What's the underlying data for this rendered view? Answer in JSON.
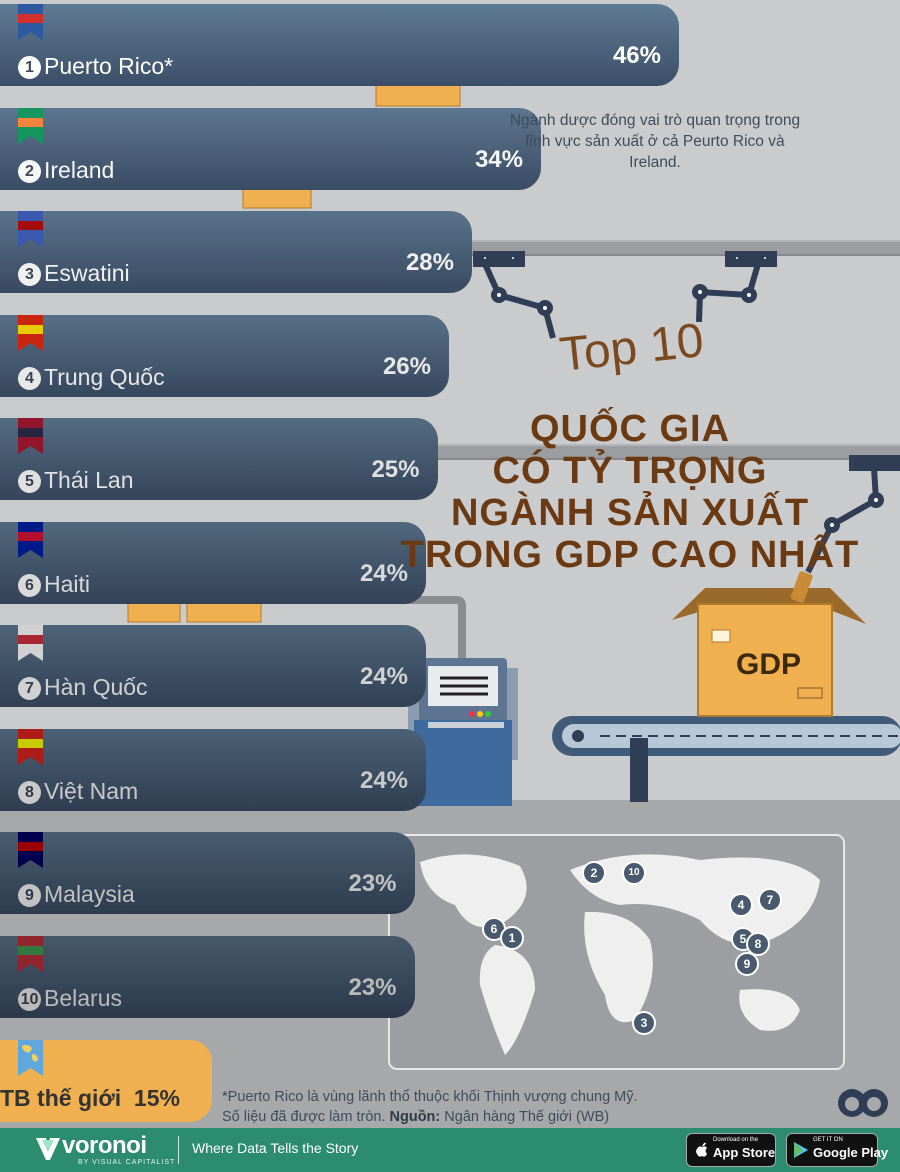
{
  "chart_data": {
    "type": "bar",
    "title_top": "Top 10",
    "title_lines": [
      "QUỐC GIA",
      "CÓ TỶ TRỌNG",
      "NGÀNH SẢN XUẤT",
      "TRONG GDP CAO NHẤT"
    ],
    "categories": [
      "Puerto Rico*",
      "Ireland",
      "Eswatini",
      "Trung Quốc",
      "Thái Lan",
      "Haiti",
      "Hàn Quốc",
      "Việt Nam",
      "Malaysia",
      "Belarus"
    ],
    "values": [
      46,
      34,
      28,
      26,
      25,
      24,
      24,
      24,
      23,
      23
    ],
    "ranks": [
      "1",
      "2",
      "3",
      "4",
      "5",
      "6",
      "7",
      "8",
      "9",
      "10"
    ],
    "value_labels": [
      "46%",
      "34%",
      "28%",
      "26%",
      "25%",
      "24%",
      "24%",
      "24%",
      "23%",
      "23%"
    ],
    "unit": "%",
    "world_average": {
      "label": "TB thế giới",
      "value": 15,
      "value_label": "15%"
    }
  },
  "annotation": "Ngành dược đóng vai trò quan trọng trong lĩnh vực sản xuất ở cả Peurto Rico và Ireland.",
  "gdp_box_label": "GDP",
  "map_markers": [
    "2",
    "10",
    "4",
    "7",
    "6",
    "1",
    "5",
    "8",
    "9",
    "3"
  ],
  "footnote_line1": "*Puerto Rico là vùng lãnh thổ thuộc khối Thịnh vượng chung Mỹ.",
  "footnote_line2_prefix": "Số liệu đã được làm tròn. ",
  "footnote_source_label": "Nguồn:",
  "footnote_source": " Ngân hàng Thế giới (WB)",
  "footer": {
    "brand": "voronoi",
    "brand_sub": "BY VISUAL CAPITALIST",
    "tagline": "Where Data Tells the Story",
    "app_store_small": "Download on the",
    "app_store": "App Store",
    "google_small": "GET IT ON",
    "google": "Google Play"
  },
  "colors": {
    "bar_top": "#5f7a93",
    "bar_bottom": "#3c4e67",
    "world_avg": "#f0b04f",
    "title": "#6b3a12",
    "footer": "#2b8d6e"
  }
}
